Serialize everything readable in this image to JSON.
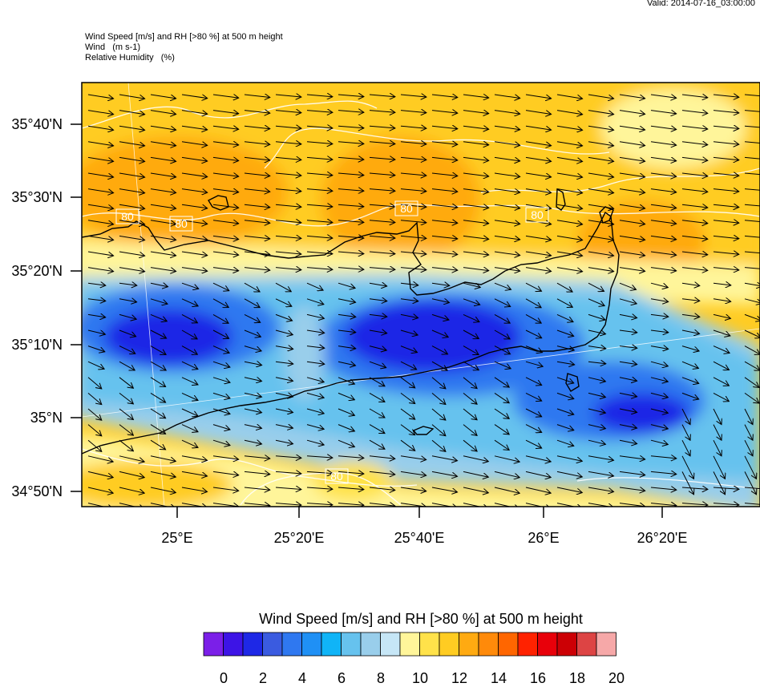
{
  "valid_time": "Valid: 2014-07-16_03:00:00",
  "header": {
    "line1": "Wind Speed [m/s] and RH [>80 %] at 500 m height",
    "line2": "Wind   (m s-1)",
    "line3": "Relative Humidity   (%)"
  },
  "map": {
    "lat_labels": [
      "35°40'N",
      "35°30'N",
      "35°20'N",
      "35°10'N",
      "35°N",
      "34°50'N"
    ],
    "lon_labels": [
      "25°E",
      "25°20'E",
      "25°40'E",
      "26°E",
      "26°20'E"
    ],
    "rh_contour_labels": [
      "80",
      "80",
      "80",
      "80",
      "80"
    ],
    "vector_field_direction": "east-southeast"
  },
  "colorbar": {
    "title": "Wind Speed [m/s] and RH [>80 %] at 500 m height",
    "tick_labels": [
      "0",
      "2",
      "4",
      "6",
      "8",
      "10",
      "12",
      "14",
      "16",
      "18",
      "20"
    ],
    "colors": [
      "#7b1fe8",
      "#3d14e6",
      "#1e28e6",
      "#3a5be0",
      "#2f78f0",
      "#1f90f5",
      "#10b4f7",
      "#66c2ee",
      "#99ceeb",
      "#c6e6f6",
      "#fff59a",
      "#ffe24a",
      "#ffcc22",
      "#ffaa11",
      "#ff8a0a",
      "#ff6600",
      "#ff2200",
      "#e8000a",
      "#cc0005",
      "#dd4444",
      "#f6a8a8"
    ]
  }
}
